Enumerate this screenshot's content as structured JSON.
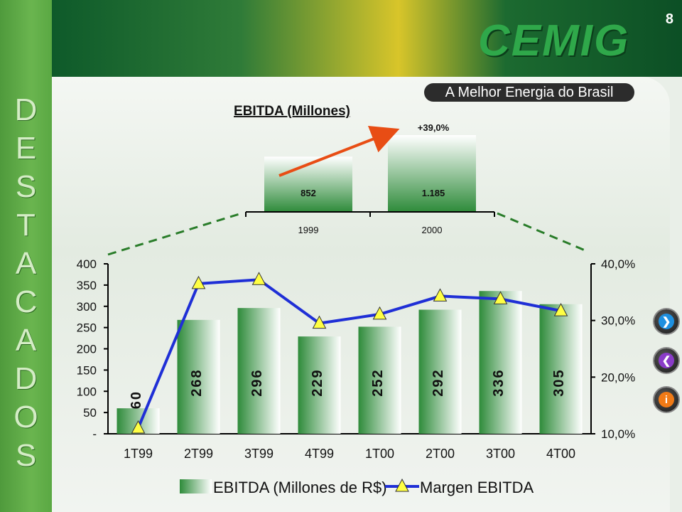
{
  "slide_number": "8",
  "sidebar_letters": [
    "D",
    "E",
    "S",
    "T",
    "A",
    "C",
    "A",
    "D",
    "O",
    "S"
  ],
  "brand": {
    "logo": "CEMIG",
    "tagline": "A Melhor Energia do Brasil"
  },
  "nav_icons": [
    "next-icon",
    "back-icon",
    "info-icon"
  ],
  "colors": {
    "sidebar": "#5aa843",
    "bar_green": "#2e8b3a",
    "line_blue": "#1f2fd6",
    "arrow_red": "#e84d14",
    "dashed_green": "#2a7d2a"
  },
  "chart_data": [
    {
      "type": "bar",
      "title": "EBITDA (Millones)",
      "categories": [
        "1999",
        "2000"
      ],
      "values": [
        852,
        1185
      ],
      "value_labels": [
        "852",
        "1.185"
      ],
      "annotation": "+39,0%"
    },
    {
      "type": "bar",
      "categories": [
        "1T99",
        "2T99",
        "3T99",
        "4T99",
        "1T00",
        "2T00",
        "3T00",
        "4T00"
      ],
      "series": [
        {
          "name": "EBITDA (Millones de R$)",
          "axis": "left",
          "values": [
            60,
            268,
            296,
            229,
            252,
            292,
            336,
            305
          ]
        },
        {
          "name": "Margen EBITDA",
          "axis": "right",
          "kind": "line",
          "values": [
            11.0,
            36.5,
            37.2,
            29.5,
            31.1,
            34.3,
            33.8,
            31.7
          ]
        }
      ],
      "left_axis": {
        "ylim": [
          0,
          400
        ],
        "ticks": [
          "-",
          "50",
          "100",
          "150",
          "200",
          "250",
          "300",
          "350",
          "400"
        ]
      },
      "right_axis": {
        "ylim": [
          10,
          40
        ],
        "ticks": [
          "10,0%",
          "20,0%",
          "30,0%",
          "40,0%"
        ]
      },
      "legend": "bottom"
    }
  ]
}
